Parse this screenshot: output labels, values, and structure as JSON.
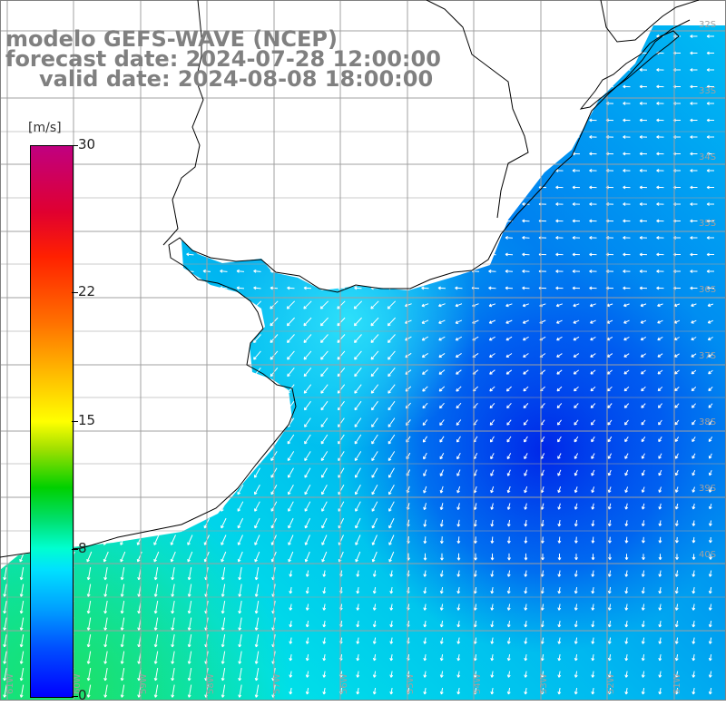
{
  "title": {
    "line1": "modelo GEFS-WAVE (NCEP)",
    "line2": "forecast date: 2024-07-28 12:00:00",
    "line3": "valid date: 2024-08-08 18:00:00"
  },
  "colorbar": {
    "unit": "[m/s]",
    "ticks": [
      {
        "label": "30",
        "value": 30
      },
      {
        "label": "22",
        "value": 22
      },
      {
        "label": "15",
        "value": 15
      },
      {
        "label": "8",
        "value": 8
      },
      {
        "label": "0",
        "value": 0
      }
    ]
  },
  "latitude_labels": [
    "32S",
    "33S",
    "34S",
    "35S",
    "36S",
    "37S",
    "38S",
    "39S",
    "40S"
  ],
  "longitude_labels": [
    "61W",
    "60W",
    "59W",
    "58W",
    "57W",
    "56W",
    "55W",
    "54W",
    "53W",
    "52W",
    "51W"
  ],
  "colors": {
    "land": "#ffffff",
    "coast": "#000000",
    "grid": "#a0a0a0",
    "arrow": "#ffffff"
  }
}
